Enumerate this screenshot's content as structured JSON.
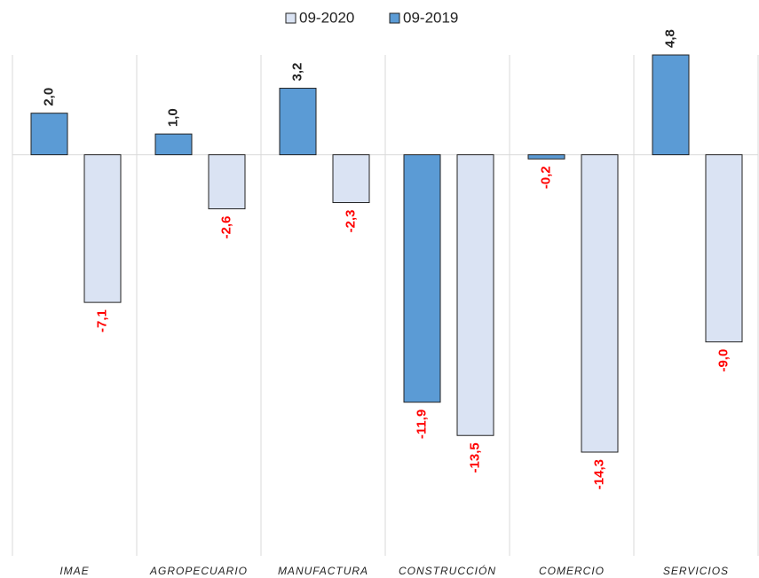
{
  "chart_data": {
    "type": "bar",
    "categories": [
      "IMAE",
      "AGROPECUARIO",
      "MANUFACTURA",
      "CONSTRUCCIÓN",
      "COMERCIO",
      "SERVICIOS"
    ],
    "series": [
      {
        "name": "09-2019",
        "color": "#5b9bd5",
        "values": [
          2.0,
          1.0,
          3.2,
          -11.9,
          -0.2,
          4.8
        ],
        "value_labels": [
          "2,0",
          "1,0",
          "3,2",
          "-11,9",
          "-0,2",
          "4,8"
        ]
      },
      {
        "name": "09-2020",
        "color": "#dae3f3",
        "values": [
          -7.1,
          -2.6,
          -2.3,
          -13.5,
          -14.3,
          -9.0
        ],
        "value_labels": [
          "-7,1",
          "-2,6",
          "-2,3",
          "-13,5",
          "-14,3",
          "-9,0"
        ]
      }
    ],
    "legend": "top"
  }
}
